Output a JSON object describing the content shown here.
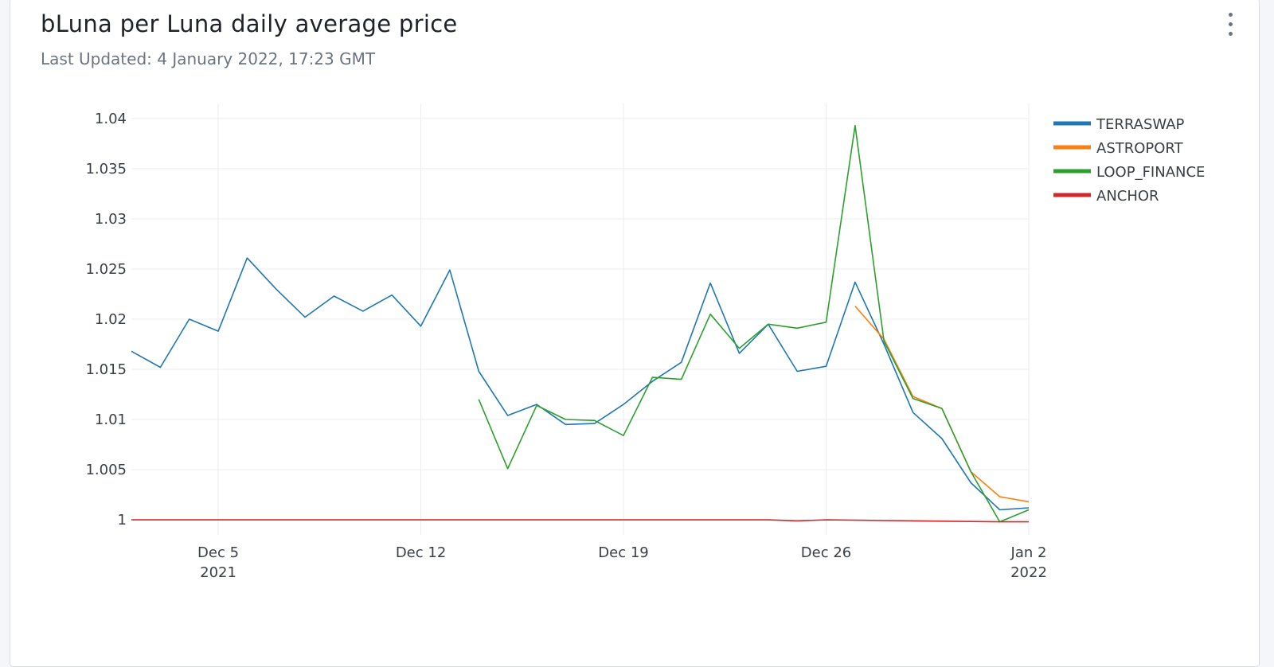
{
  "header": {
    "title": "bLuna per Luna daily average price",
    "subtitle": "Last Updated: 4 January 2022, 17:23 GMT",
    "menu_icon": "more-vertical-icon"
  },
  "chart_data": {
    "type": "line",
    "x_axis": {
      "range": [
        "2021-12-02",
        "2022-01-02"
      ],
      "ticks": [
        {
          "date": "2021-12-05",
          "label": "Dec 5",
          "sublabel": "2021"
        },
        {
          "date": "2021-12-12",
          "label": "Dec 12",
          "sublabel": ""
        },
        {
          "date": "2021-12-19",
          "label": "Dec 19",
          "sublabel": ""
        },
        {
          "date": "2021-12-26",
          "label": "Dec 26",
          "sublabel": ""
        },
        {
          "date": "2022-01-02",
          "label": "Jan 2",
          "sublabel": "2022"
        }
      ]
    },
    "y_axis": {
      "range": [
        0.9985,
        1.0415
      ],
      "ticks": [
        1,
        1.005,
        1.01,
        1.015,
        1.02,
        1.025,
        1.03,
        1.035,
        1.04
      ],
      "tick_labels": [
        "1",
        "1.005",
        "1.01",
        "1.015",
        "1.02",
        "1.025",
        "1.03",
        "1.035",
        "1.04"
      ]
    },
    "grid": true,
    "legend_position": "top-right",
    "series": [
      {
        "name": "TERRASWAP",
        "color": "#1f77b4",
        "points": [
          [
            "2021-12-02",
            1.0168
          ],
          [
            "2021-12-03",
            1.0152
          ],
          [
            "2021-12-04",
            1.02
          ],
          [
            "2021-12-05",
            1.0188
          ],
          [
            "2021-12-06",
            1.0261
          ],
          [
            "2021-12-07",
            1.023
          ],
          [
            "2021-12-08",
            1.0202
          ],
          [
            "2021-12-09",
            1.0223
          ],
          [
            "2021-12-10",
            1.0208
          ],
          [
            "2021-12-11",
            1.0224
          ],
          [
            "2021-12-12",
            1.0193
          ],
          [
            "2021-12-13",
            1.0249
          ],
          [
            "2021-12-14",
            1.0148
          ],
          [
            "2021-12-15",
            1.0104
          ],
          [
            "2021-12-16",
            1.0115
          ],
          [
            "2021-12-17",
            1.0095
          ],
          [
            "2021-12-18",
            1.0096
          ],
          [
            "2021-12-19",
            1.0115
          ],
          [
            "2021-12-20",
            1.0138
          ],
          [
            "2021-12-21",
            1.0157
          ],
          [
            "2021-12-22",
            1.0236
          ],
          [
            "2021-12-23",
            1.0166
          ],
          [
            "2021-12-24",
            1.0195
          ],
          [
            "2021-12-25",
            1.0148
          ],
          [
            "2021-12-26",
            1.0153
          ],
          [
            "2021-12-27",
            1.0237
          ],
          [
            "2021-12-28",
            1.0175
          ],
          [
            "2021-12-29",
            1.0107
          ],
          [
            "2021-12-30",
            1.0081
          ],
          [
            "2021-12-31",
            1.0037
          ],
          [
            "2022-01-01",
            1.001
          ],
          [
            "2022-01-02",
            1.0012
          ]
        ]
      },
      {
        "name": "ASTROPORT",
        "color": "#ff7f0e",
        "points": [
          [
            "2021-12-27",
            1.0213
          ],
          [
            "2021-12-28",
            1.018
          ],
          [
            "2021-12-29",
            1.0123
          ],
          [
            "2021-12-30",
            1.0111
          ],
          [
            "2021-12-31",
            1.0048
          ],
          [
            "2022-01-01",
            1.0023
          ],
          [
            "2022-01-02",
            1.0018
          ]
        ]
      },
      {
        "name": "LOOP_FINANCE",
        "color": "#2ca02c",
        "points": [
          [
            "2021-12-14",
            1.012
          ],
          [
            "2021-12-15",
            1.0051
          ],
          [
            "2021-12-16",
            1.0114
          ],
          [
            "2021-12-17",
            1.01
          ],
          [
            "2021-12-18",
            1.0099
          ],
          [
            "2021-12-19",
            1.0084
          ],
          [
            "2021-12-20",
            1.0142
          ],
          [
            "2021-12-21",
            1.014
          ],
          [
            "2021-12-22",
            1.0205
          ],
          [
            "2021-12-23",
            1.0171
          ],
          [
            "2021-12-24",
            1.0195
          ],
          [
            "2021-12-25",
            1.0191
          ],
          [
            "2021-12-26",
            1.0197
          ],
          [
            "2021-12-27",
            1.0393
          ],
          [
            "2021-12-28",
            1.0178
          ],
          [
            "2021-12-29",
            1.0121
          ],
          [
            "2021-12-30",
            1.0111
          ],
          [
            "2021-12-31",
            1.0048
          ],
          [
            "2022-01-01",
            0.9998
          ],
          [
            "2022-01-02",
            1.001
          ]
        ]
      },
      {
        "name": "ANCHOR",
        "color": "#d62728",
        "points": [
          [
            "2021-12-02",
            1.0
          ],
          [
            "2021-12-10",
            1.0
          ],
          [
            "2021-12-20",
            1.0
          ],
          [
            "2021-12-24",
            1.0
          ],
          [
            "2021-12-25",
            0.9999
          ],
          [
            "2021-12-26",
            1.0
          ],
          [
            "2021-12-29",
            0.9999
          ],
          [
            "2022-01-01",
            0.9998
          ],
          [
            "2022-01-02",
            0.9998
          ]
        ]
      }
    ]
  }
}
